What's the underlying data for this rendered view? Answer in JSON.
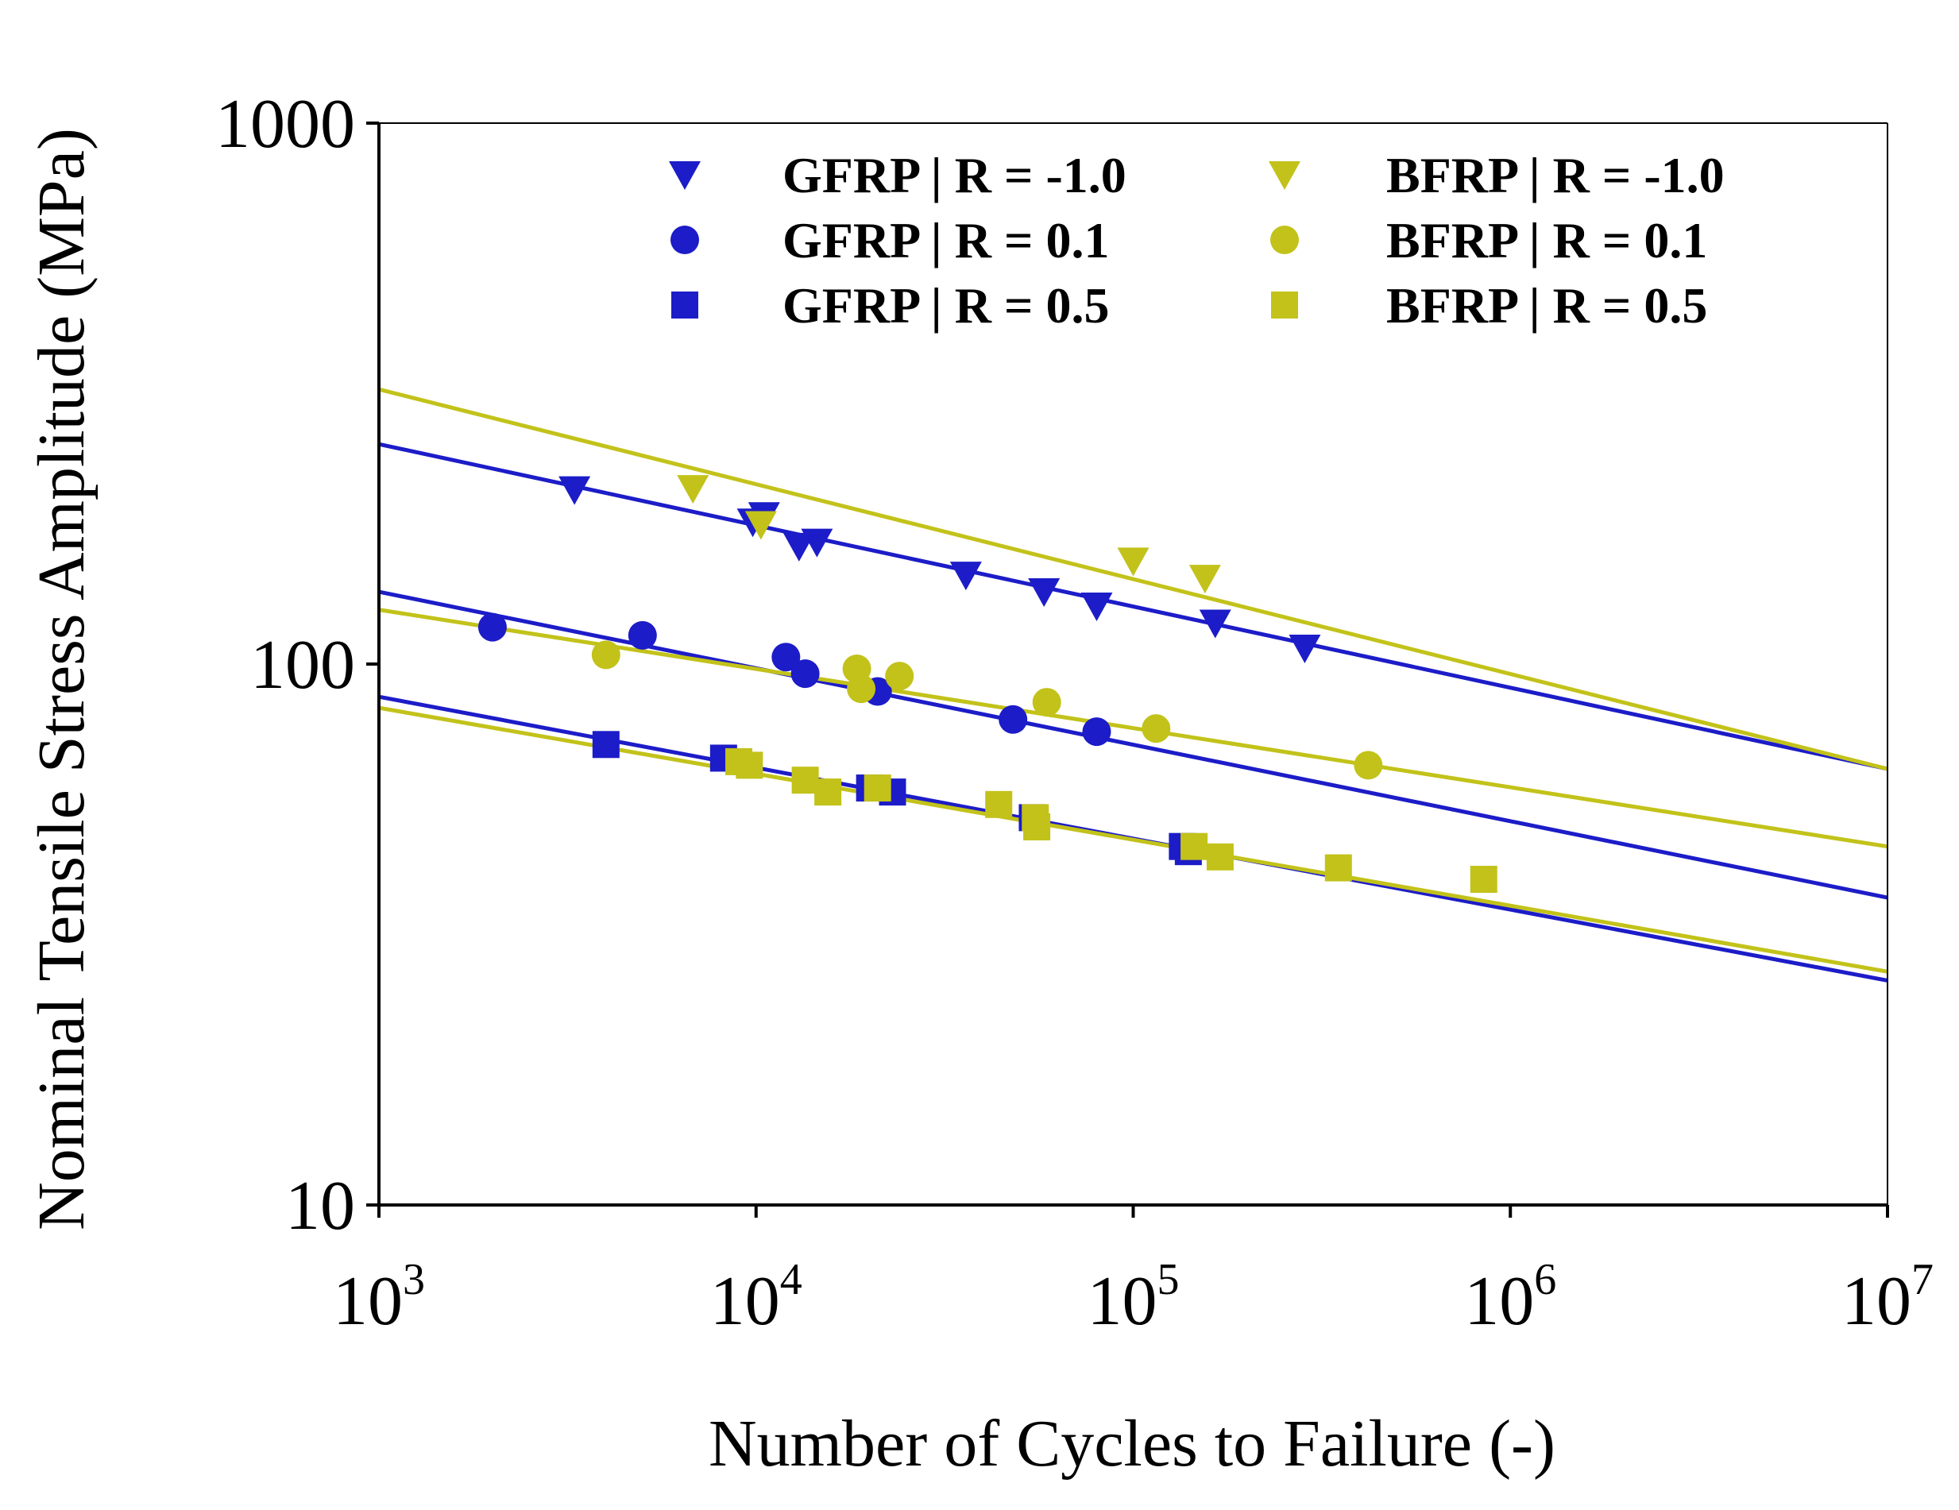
{
  "chart_data": {
    "type": "scatter",
    "xscale": "log",
    "yscale": "log",
    "xlabel": "Number of Cycles to Failure (-)",
    "ylabel": "Nominal Tensile Stress Amplitude (MPa)",
    "xlim": [
      1000,
      10000000
    ],
    "ylim": [
      10,
      1000
    ],
    "x_ticks": [
      {
        "value": 1000,
        "base": "10",
        "exp": "3"
      },
      {
        "value": 10000,
        "base": "10",
        "exp": "4"
      },
      {
        "value": 100000,
        "base": "10",
        "exp": "5"
      },
      {
        "value": 1000000,
        "base": "10",
        "exp": "6"
      },
      {
        "value": 10000000,
        "base": "10",
        "exp": "7"
      }
    ],
    "y_ticks": [
      {
        "value": 10,
        "label": "10"
      },
      {
        "value": 100,
        "label": "100"
      },
      {
        "value": 1000,
        "label": "1000"
      }
    ],
    "grid": false,
    "legend_position": "top-right",
    "colors": {
      "GFRP": "#1c1cc8",
      "BFRP": "#c2c21a"
    },
    "series": [
      {
        "name": "GFRP | R = -1.0",
        "material": "GFRP",
        "marker": "triangle-down",
        "points": [
          [
            3300,
            210
          ],
          [
            9800,
            183
          ],
          [
            10500,
            188
          ],
          [
            13000,
            165
          ],
          [
            14500,
            168
          ],
          [
            36000,
            146
          ],
          [
            58000,
            136
          ],
          [
            80000,
            128
          ],
          [
            165000,
            119
          ],
          [
            285000,
            107
          ]
        ],
        "fit": [
          [
            1000,
            255
          ],
          [
            10000000,
            64
          ]
        ]
      },
      {
        "name": "GFRP | R = 0.1",
        "material": "GFRP",
        "marker": "circle",
        "points": [
          [
            2000,
            117
          ],
          [
            5000,
            113
          ],
          [
            12000,
            103
          ],
          [
            13500,
            96
          ],
          [
            21000,
            89
          ],
          [
            48000,
            79
          ],
          [
            80000,
            75
          ]
        ],
        "fit": [
          [
            1000,
            136
          ],
          [
            10000000,
            37
          ]
        ]
      },
      {
        "name": "GFRP | R = 0.5",
        "material": "GFRP",
        "marker": "square",
        "points": [
          [
            4000,
            71
          ],
          [
            8200,
            67
          ],
          [
            20000,
            59
          ],
          [
            23000,
            58
          ],
          [
            54000,
            52
          ],
          [
            135000,
            46
          ],
          [
            140000,
            45
          ]
        ],
        "fit": [
          [
            1000,
            87
          ],
          [
            10000000,
            26
          ]
        ]
      },
      {
        "name": "BFRP | R = -1.0",
        "material": "BFRP",
        "marker": "triangle-down",
        "points": [
          [
            6800,
            211
          ],
          [
            10300,
            181
          ],
          [
            100000,
            155
          ],
          [
            155000,
            144
          ]
        ],
        "fit": [
          [
            1000,
            322
          ],
          [
            10000000,
            64
          ]
        ]
      },
      {
        "name": "BFRP | R = 0.1",
        "material": "BFRP",
        "marker": "circle",
        "points": [
          [
            4000,
            104
          ],
          [
            18500,
            98
          ],
          [
            19000,
            90
          ],
          [
            24000,
            95
          ],
          [
            59000,
            85
          ],
          [
            115000,
            76
          ],
          [
            420000,
            65
          ]
        ],
        "fit": [
          [
            1000,
            126
          ],
          [
            10000000,
            46
          ]
        ]
      },
      {
        "name": "BFRP | R = 0.5",
        "material": "BFRP",
        "marker": "square",
        "points": [
          [
            9000,
            66
          ],
          [
            9600,
            65
          ],
          [
            13500,
            61
          ],
          [
            15500,
            58
          ],
          [
            21000,
            59
          ],
          [
            44000,
            55
          ],
          [
            55000,
            52
          ],
          [
            55500,
            50
          ],
          [
            145000,
            46
          ],
          [
            170000,
            44
          ],
          [
            350000,
            42
          ],
          [
            850000,
            40
          ]
        ],
        "fit": [
          [
            1000,
            83
          ],
          [
            10000000,
            27
          ]
        ]
      }
    ]
  }
}
